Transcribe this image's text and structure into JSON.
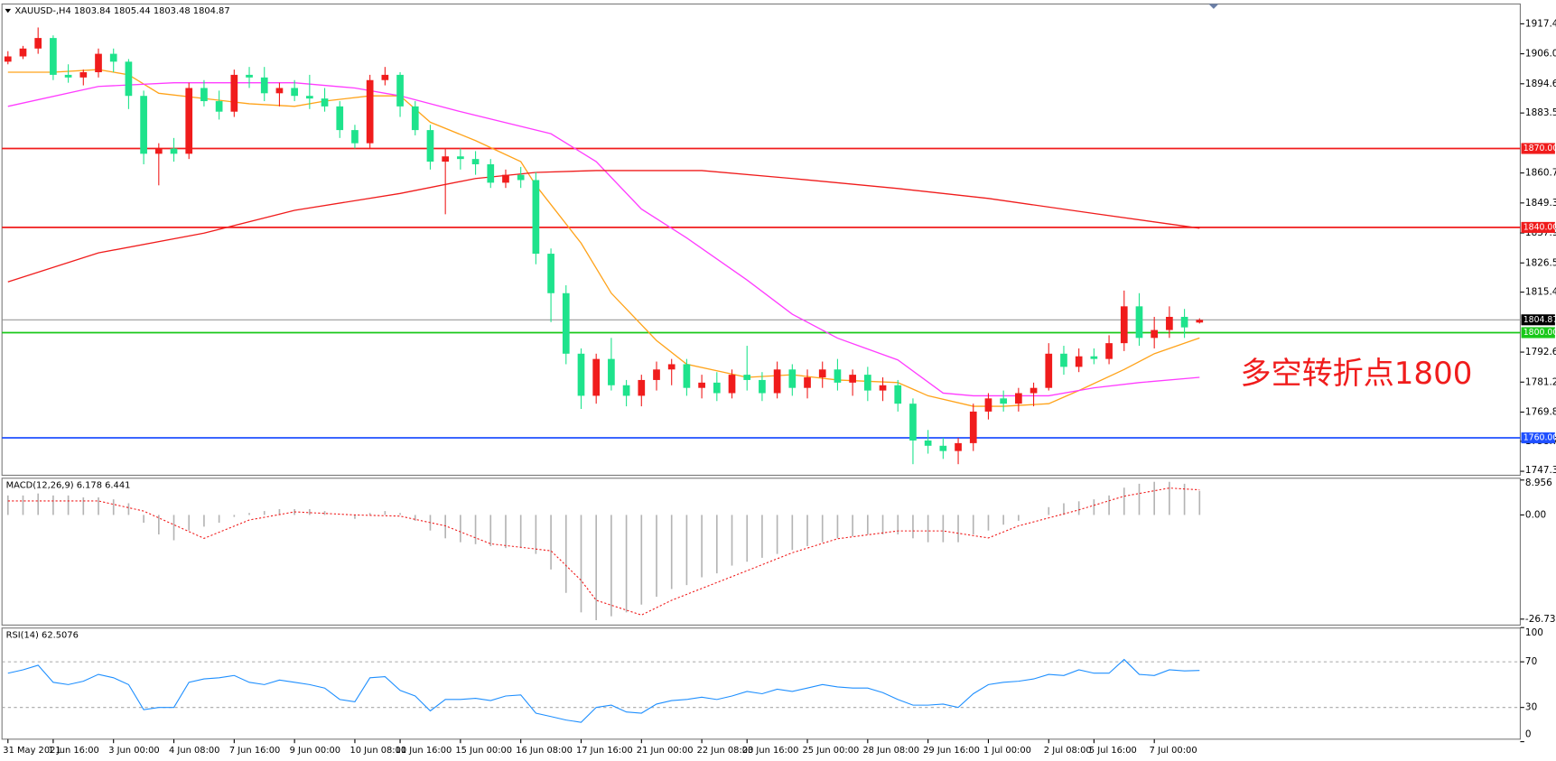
{
  "chart_data": [
    {
      "type": "candlestick",
      "title": "XAUUSD-,H4  1803.84 1805.44 1803.48 1804.87",
      "categories": [
        "31 May 2021",
        null,
        null,
        "1 Jun 16:00",
        null,
        null,
        null,
        "3 Jun 00:00",
        null,
        null,
        null,
        "4 Jun 08:00",
        null,
        null,
        null,
        "7 Jun 16:00",
        null,
        null,
        null,
        "9 Jun 00:00",
        null,
        null,
        null,
        "10 Jun 08:00",
        null,
        null,
        "11 Jun 16:00",
        null,
        null,
        null,
        "15 Jun 00:00",
        null,
        null,
        null,
        "16 Jun 08:00",
        null,
        null,
        null,
        "17 Jun 16:00",
        null,
        null,
        null,
        "21 Jun 00:00",
        null,
        null,
        null,
        "22 Jun 08:00",
        null,
        null,
        "23 Jun 16:00",
        null,
        null,
        null,
        "25 Jun 00:00",
        null,
        null,
        null,
        "28 Jun 08:00",
        null,
        null,
        null,
        "29 Jun 16:00",
        null,
        null,
        null,
        "1 Jul 00:00",
        null,
        null,
        null,
        "2 Jul 08:00",
        null,
        null,
        "5 Jul 16:00",
        null,
        null,
        null,
        "7 Jul 00:00",
        null,
        null,
        null
      ],
      "ohlc": [
        [
          1903,
          1907,
          1902,
          1905
        ],
        [
          1905,
          1909,
          1904,
          1908
        ],
        [
          1908,
          1916,
          1906,
          1912
        ],
        [
          1912,
          1913,
          1896,
          1898
        ],
        [
          1898,
          1902,
          1895,
          1897
        ],
        [
          1897,
          1900,
          1894,
          1899
        ],
        [
          1899,
          1908,
          1897,
          1906
        ],
        [
          1906,
          1908,
          1899,
          1903
        ],
        [
          1903,
          1904,
          1885,
          1890
        ],
        [
          1890,
          1892,
          1864,
          1868
        ],
        [
          1868,
          1872,
          1856,
          1870
        ],
        [
          1870,
          1874,
          1865,
          1868
        ],
        [
          1868,
          1895,
          1866,
          1893
        ],
        [
          1893,
          1896,
          1886,
          1888
        ],
        [
          1888,
          1892,
          1881,
          1884
        ],
        [
          1884,
          1900,
          1882,
          1898
        ],
        [
          1898,
          1901,
          1893,
          1897
        ],
        [
          1897,
          1901,
          1888,
          1891
        ],
        [
          1891,
          1895,
          1886,
          1893
        ],
        [
          1893,
          1896,
          1888,
          1890
        ],
        [
          1890,
          1898,
          1885,
          1889
        ],
        [
          1889,
          1893,
          1884,
          1886
        ],
        [
          1886,
          1888,
          1874,
          1877
        ],
        [
          1877,
          1879,
          1870,
          1872
        ],
        [
          1872,
          1898,
          1870,
          1896
        ],
        [
          1896,
          1901,
          1894,
          1898
        ],
        [
          1898,
          1899,
          1882,
          1886
        ],
        [
          1886,
          1888,
          1875,
          1877
        ],
        [
          1877,
          1879,
          1862,
          1865
        ],
        [
          1865,
          1870,
          1845,
          1867
        ],
        [
          1867,
          1870,
          1862,
          1866
        ],
        [
          1866,
          1869,
          1860,
          1864
        ],
        [
          1864,
          1866,
          1855,
          1857
        ],
        [
          1857,
          1862,
          1855,
          1860
        ],
        [
          1860,
          1863,
          1855,
          1858
        ],
        [
          1858,
          1861,
          1826,
          1830
        ],
        [
          1830,
          1832,
          1804,
          1815
        ],
        [
          1815,
          1818,
          1788,
          1792
        ],
        [
          1792,
          1794,
          1771,
          1776
        ],
        [
          1776,
          1792,
          1773,
          1790
        ],
        [
          1790,
          1798,
          1778,
          1780
        ],
        [
          1780,
          1782,
          1772,
          1776
        ],
        [
          1776,
          1784,
          1772,
          1782
        ],
        [
          1782,
          1789,
          1778,
          1786
        ],
        [
          1786,
          1790,
          1780,
          1788
        ],
        [
          1788,
          1790,
          1776,
          1779
        ],
        [
          1779,
          1784,
          1775,
          1781
        ],
        [
          1781,
          1785,
          1774,
          1777
        ],
        [
          1777,
          1786,
          1775,
          1784
        ],
        [
          1784,
          1795,
          1778,
          1782
        ],
        [
          1782,
          1785,
          1774,
          1777
        ],
        [
          1777,
          1789,
          1775,
          1786
        ],
        [
          1786,
          1788,
          1776,
          1779
        ],
        [
          1779,
          1786,
          1775,
          1783
        ],
        [
          1783,
          1789,
          1779,
          1786
        ],
        [
          1786,
          1790,
          1778,
          1781
        ],
        [
          1781,
          1786,
          1776,
          1784
        ],
        [
          1784,
          1787,
          1774,
          1778
        ],
        [
          1778,
          1783,
          1774,
          1780
        ],
        [
          1780,
          1782,
          1770,
          1773
        ],
        [
          1773,
          1775,
          1750,
          1759
        ],
        [
          1759,
          1763,
          1754,
          1757
        ],
        [
          1757,
          1760,
          1752,
          1755
        ],
        [
          1755,
          1760,
          1750,
          1758
        ],
        [
          1758,
          1773,
          1755,
          1770
        ],
        [
          1770,
          1777,
          1767,
          1775
        ],
        [
          1775,
          1778,
          1770,
          1773
        ],
        [
          1773,
          1779,
          1770,
          1777
        ],
        [
          1777,
          1781,
          1772,
          1779
        ],
        [
          1779,
          1796,
          1778,
          1792
        ],
        [
          1792,
          1795,
          1784,
          1787
        ],
        [
          1787,
          1794,
          1785,
          1791
        ],
        [
          1791,
          1794,
          1788,
          1790
        ],
        [
          1790,
          1799,
          1788,
          1796
        ],
        [
          1796,
          1816,
          1793,
          1810
        ],
        [
          1810,
          1815,
          1795,
          1798
        ],
        [
          1798,
          1806,
          1794,
          1801
        ],
        [
          1801,
          1810,
          1798,
          1806
        ],
        [
          1806,
          1809,
          1798,
          1802
        ],
        [
          1803.84,
          1805.44,
          1803.48,
          1804.87
        ]
      ],
      "up_color": "#f01c1c",
      "down_color": "#1ee38c",
      "ylim": [
        1745.79,
        1924.94
      ],
      "yticks": [
        {
          "value": 1917.4,
          "label": "1917.40"
        },
        {
          "value": 1906,
          "label": "1906.00"
        },
        {
          "value": 1894.6,
          "label": "1894.60"
        },
        {
          "value": 1883.5,
          "label": "1883.50"
        },
        {
          "value": 1860.7,
          "label": "1860.70"
        },
        {
          "value": 1849.3,
          "label": "1849.30"
        },
        {
          "value": 1837.9,
          "label": "1837.90"
        },
        {
          "value": 1826.5,
          "label": "1826.50"
        },
        {
          "value": 1815.4,
          "label": "1815.40"
        },
        {
          "value": 1792.6,
          "label": "1792.60"
        },
        {
          "value": 1781.2,
          "label": "1781.20"
        },
        {
          "value": 1769.8,
          "label": "1769.80"
        },
        {
          "value": 1758.7,
          "label": "1758.70"
        },
        {
          "value": 1747.3,
          "label": "1747.30"
        }
      ],
      "lines": [
        {
          "color": "#ffa31a",
          "x": [
            0,
            3,
            6,
            8,
            10,
            13,
            16,
            19,
            21,
            24,
            26,
            28,
            31,
            34,
            35,
            38,
            40,
            43,
            45,
            49,
            52,
            55,
            59,
            61,
            64,
            66,
            69,
            71,
            74,
            76,
            79
          ],
          "values": [
            1899,
            1899,
            1900,
            1898,
            1891,
            1889,
            1887,
            1886,
            1888,
            1890,
            1890,
            1880,
            1873,
            1865,
            1856,
            1834,
            1815,
            1797,
            1788,
            1783,
            1784,
            1782,
            1781,
            1776,
            1772,
            1772,
            1773,
            1778,
            1786,
            1792,
            1798
          ]
        },
        {
          "color": "#ff3cff",
          "x": [
            0,
            6,
            11,
            19,
            23,
            26,
            30,
            36,
            39,
            42,
            45,
            49,
            52,
            55,
            59,
            62,
            64,
            69,
            72,
            75,
            79
          ],
          "values": [
            1886,
            1893.6,
            1895,
            1895,
            1893,
            1890,
            1884,
            1875.6,
            1865,
            1847,
            1836,
            1820,
            1807,
            1797.9,
            1789.6,
            1777,
            1776,
            1776,
            1779,
            1781,
            1783
          ]
        },
        {
          "color": "#f01c1c",
          "x": [
            0,
            6,
            13,
            19,
            26,
            31,
            35,
            39,
            46,
            52,
            59,
            65,
            72,
            79
          ],
          "values": [
            1819.3,
            1830.3,
            1837.8,
            1846.5,
            1852.9,
            1858.6,
            1860.9,
            1861.6,
            1861.6,
            1858.6,
            1854.8,
            1851,
            1845.3,
            1839.7
          ]
        }
      ],
      "levels": [
        {
          "value": 1870,
          "label": "1870.00",
          "color": "#f01c1c"
        },
        {
          "value": 1840,
          "label": "1840.00",
          "color": "#f01c1c"
        },
        {
          "value": 1800,
          "label": "1800.00",
          "color": "#19c819"
        },
        {
          "value": 1760,
          "label": "1760.00",
          "color": "#2050ff"
        }
      ],
      "last_price": 1804.87,
      "annotation": "多空转折点1800"
    },
    {
      "type": "macd",
      "title": "MACD(12,26,9) 6.178 6.441",
      "values": [
        5,
        5,
        5.5,
        5,
        5,
        4.5,
        4.5,
        4,
        3,
        -2,
        -5,
        -6.5,
        -4,
        -3,
        -2,
        -0.5,
        0.5,
        1,
        1.5,
        1.5,
        1.5,
        1,
        0,
        -1,
        0.5,
        1,
        0.5,
        -1.5,
        -4,
        -6,
        -7,
        -7.5,
        -8,
        -8.5,
        -8.5,
        -10,
        -14,
        -20,
        -25,
        -27,
        -26,
        -25,
        -23,
        -21,
        -19,
        -18,
        -16,
        -15,
        -13,
        -12,
        -11,
        -10,
        -9,
        -8,
        -7,
        -6,
        -5.5,
        -5,
        -5,
        -5,
        -6,
        -7,
        -7,
        -7,
        -5,
        -4,
        -2.5,
        -1.5,
        0,
        2,
        3,
        3.5,
        4,
        5,
        7,
        8,
        8.5,
        8.5,
        8,
        6.178
      ],
      "color": "#b4b4b4",
      "signal": {
        "color": "#f01c1c",
        "x": [
          0,
          6,
          9,
          13,
          16,
          19,
          23,
          26,
          29,
          32,
          36,
          38,
          39,
          42,
          44,
          49,
          52,
          55,
          59,
          62,
          65,
          67,
          71,
          74,
          77,
          79
        ],
        "values": [
          3.6,
          3.6,
          1,
          -6,
          -1.3,
          0.8,
          0,
          -0.3,
          -2.8,
          -7.4,
          -9.2,
          -16.8,
          -21.9,
          -25.7,
          -21.9,
          -14.3,
          -9.7,
          -6.1,
          -4.1,
          -4.1,
          -5.9,
          -2.8,
          1.3,
          4.8,
          6.9,
          6.441
        ]
      },
      "ylim": [
        -28.26,
        9.42
      ],
      "yticks": [
        8.956,
        {
          "value": 0,
          "label": "0.00"
        },
        -26.731
      ]
    },
    {
      "type": "rsi",
      "title": "RSI(14) 62.5076",
      "values": [
        60,
        63,
        67,
        52,
        50,
        53,
        59,
        56,
        50,
        28,
        30,
        30,
        52,
        55,
        56,
        58,
        52,
        50,
        54,
        52,
        50,
        47,
        37,
        35,
        56,
        57,
        45,
        40,
        27,
        37,
        37,
        38,
        36,
        40,
        41,
        25,
        22,
        19,
        17,
        30,
        32,
        26,
        25,
        33,
        36,
        37,
        39,
        37,
        40,
        44,
        42,
        46,
        44,
        47,
        50,
        48,
        47,
        47,
        43,
        37,
        32,
        32,
        33,
        30,
        42,
        50,
        52,
        53,
        55,
        59,
        58,
        63,
        60,
        60,
        72,
        59,
        58,
        63,
        62,
        62.5076
      ],
      "color": "#1e8fff",
      "ylim": [
        2.2,
        99.6
      ],
      "yticks": [
        100,
        70,
        30,
        0
      ],
      "levels": [
        70,
        30
      ]
    }
  ]
}
